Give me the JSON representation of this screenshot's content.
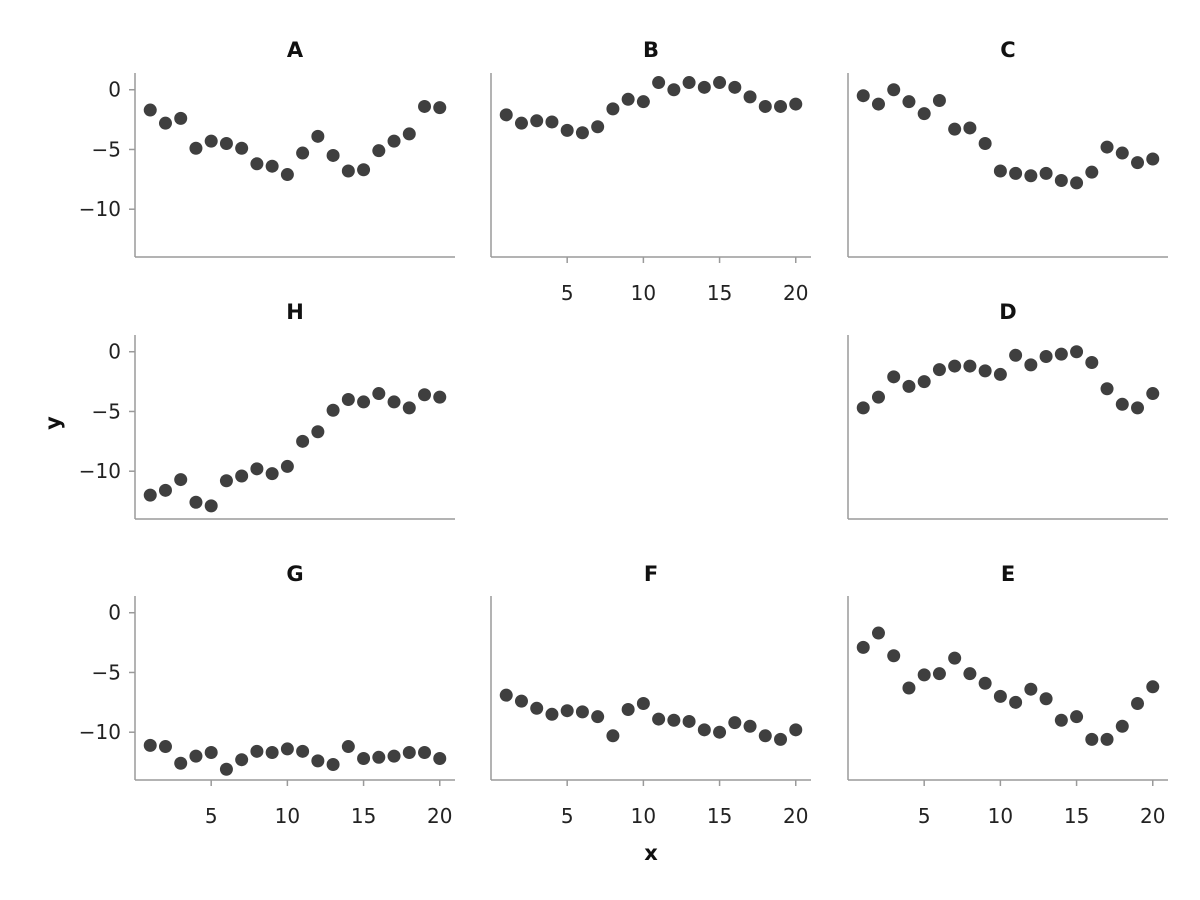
{
  "chart_data": {
    "type": "scatter",
    "layout": "3x3 facet grid with one empty cell",
    "xlabel": "x",
    "ylabel": "y",
    "xlim": [
      0,
      21
    ],
    "ylim": [
      -14,
      1.4
    ],
    "xticks": [
      5,
      10,
      15,
      20
    ],
    "yticks": [
      0,
      -5,
      -10
    ],
    "grid": false,
    "point_color": "#3f3f3f",
    "axis_color": "#9a9a9a",
    "panels": [
      {
        "title": "A",
        "row": 0,
        "col": 0,
        "show_xticks": false,
        "show_yticks": true,
        "x": [
          1,
          2,
          3,
          4,
          5,
          6,
          7,
          8,
          9,
          10,
          11,
          12,
          13,
          14,
          15,
          16,
          17,
          18,
          19,
          20
        ],
        "y": [
          -1.7,
          -2.8,
          -2.4,
          -4.9,
          -4.3,
          -4.5,
          -4.9,
          -6.2,
          -6.4,
          -7.1,
          -5.3,
          -3.9,
          -5.5,
          -6.8,
          -6.7,
          -5.1,
          -4.3,
          -3.7,
          -1.4,
          -1.5
        ]
      },
      {
        "title": "B",
        "row": 0,
        "col": 1,
        "show_xticks": true,
        "show_yticks": false,
        "x": [
          1,
          2,
          3,
          4,
          5,
          6,
          7,
          8,
          9,
          10,
          11,
          12,
          13,
          14,
          15,
          16,
          17,
          18,
          19,
          20
        ],
        "y": [
          -2.1,
          -2.8,
          -2.6,
          -2.7,
          -3.4,
          -3.6,
          -3.1,
          -1.6,
          -0.8,
          -1.0,
          0.6,
          0.0,
          0.6,
          0.2,
          0.6,
          0.2,
          -0.6,
          -1.4,
          -1.4,
          -1.2
        ]
      },
      {
        "title": "C",
        "row": 0,
        "col": 2,
        "show_xticks": false,
        "show_yticks": false,
        "x": [
          1,
          2,
          3,
          4,
          5,
          6,
          7,
          8,
          9,
          10,
          11,
          12,
          13,
          14,
          15,
          16,
          17,
          18,
          19,
          20
        ],
        "y": [
          -0.5,
          -1.2,
          0.0,
          -1.0,
          -2.0,
          -0.9,
          -3.3,
          -3.2,
          -4.5,
          -6.8,
          -7.0,
          -7.2,
          -7.0,
          -7.6,
          -7.8,
          -6.9,
          -4.8,
          -5.3,
          -6.1,
          -5.8
        ]
      },
      {
        "title": "H",
        "row": 1,
        "col": 0,
        "show_xticks": false,
        "show_yticks": true,
        "x": [
          1,
          2,
          3,
          4,
          5,
          6,
          7,
          8,
          9,
          10,
          11,
          12,
          13,
          14,
          15,
          16,
          17,
          18,
          19,
          20
        ],
        "y": [
          -12.0,
          -11.6,
          -10.7,
          -12.6,
          -12.9,
          -10.8,
          -10.4,
          -9.8,
          -10.2,
          -9.6,
          -7.5,
          -6.7,
          -4.9,
          -4.0,
          -4.2,
          -3.5,
          -4.2,
          -4.7,
          -3.6,
          -3.8
        ]
      },
      {
        "title": "D",
        "row": 1,
        "col": 2,
        "show_xticks": false,
        "show_yticks": false,
        "x": [
          1,
          2,
          3,
          4,
          5,
          6,
          7,
          8,
          9,
          10,
          11,
          12,
          13,
          14,
          15,
          16,
          17,
          18,
          19,
          20
        ],
        "y": [
          -4.7,
          -3.8,
          -2.1,
          -2.9,
          -2.5,
          -1.5,
          -1.2,
          -1.2,
          -1.6,
          -1.9,
          -0.3,
          -1.1,
          -0.4,
          -0.2,
          0.0,
          -0.9,
          -3.1,
          -4.4,
          -4.7,
          -3.5
        ]
      },
      {
        "title": "G",
        "row": 2,
        "col": 0,
        "show_xticks": true,
        "show_yticks": true,
        "x": [
          1,
          2,
          3,
          4,
          5,
          6,
          7,
          8,
          9,
          10,
          11,
          12,
          13,
          14,
          15,
          16,
          17,
          18,
          19,
          20
        ],
        "y": [
          -11.1,
          -11.2,
          -12.6,
          -12.0,
          -11.7,
          -13.1,
          -12.3,
          -11.6,
          -11.7,
          -11.4,
          -11.6,
          -12.4,
          -12.7,
          -11.2,
          -12.2,
          -12.1,
          -12.0,
          -11.7,
          -11.7,
          -12.2
        ]
      },
      {
        "title": "F",
        "row": 2,
        "col": 1,
        "show_xticks": true,
        "show_yticks": false,
        "x": [
          1,
          2,
          3,
          4,
          5,
          6,
          7,
          8,
          9,
          10,
          11,
          12,
          13,
          14,
          15,
          16,
          17,
          18,
          19,
          20
        ],
        "y": [
          -6.9,
          -7.4,
          -8.0,
          -8.5,
          -8.2,
          -8.3,
          -8.7,
          -10.3,
          -8.1,
          -7.6,
          -8.9,
          -9.0,
          -9.1,
          -9.8,
          -10.0,
          -9.2,
          -9.5,
          -10.3,
          -10.6,
          -9.8
        ]
      },
      {
        "title": "E",
        "row": 2,
        "col": 2,
        "show_xticks": true,
        "show_yticks": false,
        "x": [
          1,
          2,
          3,
          4,
          5,
          6,
          7,
          8,
          9,
          10,
          11,
          12,
          13,
          14,
          15,
          16,
          17,
          18,
          19,
          20
        ],
        "y": [
          -2.9,
          -1.7,
          -3.6,
          -6.3,
          -5.2,
          -5.1,
          -3.8,
          -5.1,
          -5.9,
          -7.0,
          -7.5,
          -6.4,
          -7.2,
          -9.0,
          -8.7,
          -10.6,
          -10.6,
          -9.5,
          -7.6,
          -6.2
        ]
      }
    ]
  }
}
